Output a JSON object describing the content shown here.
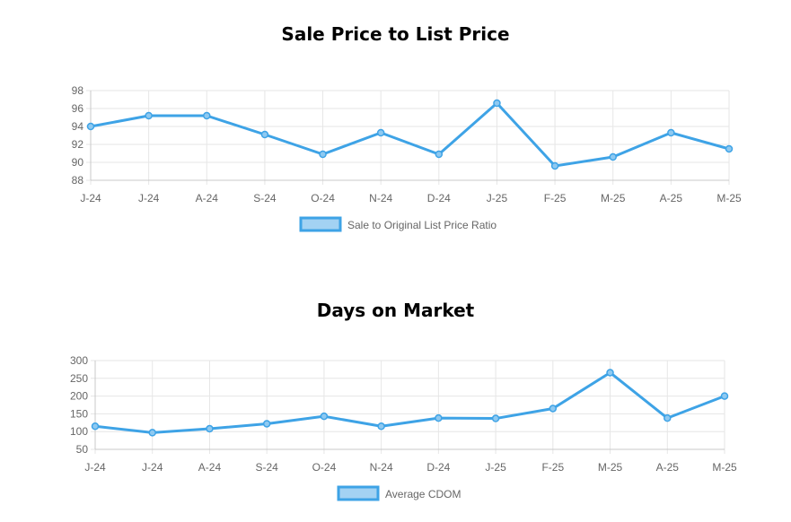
{
  "chart_data": [
    {
      "type": "line",
      "title": "Sale Price to List Price",
      "categories": [
        "J-24",
        "J-24",
        "A-24",
        "S-24",
        "O-24",
        "N-24",
        "D-24",
        "J-25",
        "F-25",
        "M-25",
        "A-25",
        "M-25"
      ],
      "series": [
        {
          "name": "Sale to Original List Price Ratio",
          "values": [
            94.0,
            95.2,
            95.2,
            93.1,
            90.9,
            93.3,
            90.9,
            96.6,
            89.6,
            90.6,
            93.3,
            91.5
          ]
        }
      ],
      "ylim": [
        88,
        98
      ],
      "yticks": [
        88,
        90,
        92,
        94,
        96,
        98
      ],
      "grid": true,
      "legend": "bottom",
      "color": "#3ea3e6"
    },
    {
      "type": "line",
      "title": "Days on Market",
      "categories": [
        "J-24",
        "J-24",
        "A-24",
        "S-24",
        "O-24",
        "N-24",
        "D-24",
        "J-25",
        "F-25",
        "M-25",
        "A-25",
        "M-25"
      ],
      "series": [
        {
          "name": "Average CDOM",
          "values": [
            115,
            97,
            108,
            122,
            143,
            115,
            138,
            137,
            165,
            266,
            138,
            200
          ]
        }
      ],
      "ylim": [
        50,
        300
      ],
      "yticks": [
        50,
        100,
        150,
        200,
        250,
        300
      ],
      "grid": true,
      "legend": "bottom",
      "color": "#3ea3e6"
    }
  ]
}
